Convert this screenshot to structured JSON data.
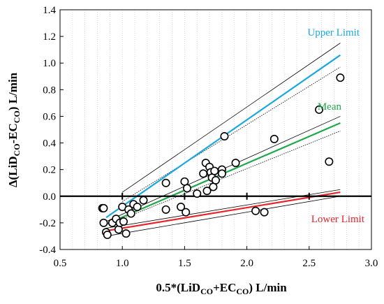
{
  "colors": {
    "upper": "#1aa7e0",
    "mean": "#1ea84a",
    "lower": "#e8242a",
    "regression": "#000000",
    "axis": "#000000",
    "grid": "#bdbdbd"
  },
  "labels": {
    "upper": "Upper Limit",
    "mean": "Mean",
    "lower": "Lower Limit"
  },
  "chart_data": {
    "type": "scatter",
    "title": "",
    "xlabel": {
      "prefix": "0.5*(LiD",
      "sub1": "CO",
      "mid": "+EC",
      "sub2": "CO",
      "suffix": ") L/min"
    },
    "ylabel": {
      "prefix": "Δ(LiD",
      "sub1": "CO",
      "mid": "-EC",
      "sub2": "CO",
      "suffix": ") L/min"
    },
    "xlim": [
      0.5,
      3.0
    ],
    "ylim": [
      -0.4,
      1.4
    ],
    "xticks": [
      0.5,
      1.0,
      1.5,
      2.0,
      2.5,
      3.0
    ],
    "xtick_labels": [
      "0.5",
      "1.0",
      "1.5",
      "2.0",
      "2.5",
      "3.0"
    ],
    "yticks": [
      -0.4,
      -0.2,
      0.0,
      0.2,
      0.4,
      0.6,
      0.8,
      1.0,
      1.2,
      1.4
    ],
    "ytick_labels": [
      "-0.4",
      "-0.2",
      "0.0",
      "0.2",
      "0.4",
      "0.6",
      "0.8",
      "1.0",
      "1.2",
      "1.4"
    ],
    "zero_line_ticks": [
      1.0,
      1.5,
      2.0,
      2.5
    ],
    "grid": "vertical minor dotted",
    "points": [
      {
        "x": 0.84,
        "y": -0.09
      },
      {
        "x": 0.85,
        "y": -0.09
      },
      {
        "x": 0.85,
        "y": -0.2
      },
      {
        "x": 0.87,
        "y": -0.27
      },
      {
        "x": 0.88,
        "y": -0.29
      },
      {
        "x": 0.92,
        "y": -0.2
      },
      {
        "x": 0.95,
        "y": -0.17
      },
      {
        "x": 0.97,
        "y": -0.25
      },
      {
        "x": 0.98,
        "y": -0.2
      },
      {
        "x": 1.0,
        "y": -0.08
      },
      {
        "x": 1.01,
        "y": -0.19
      },
      {
        "x": 1.03,
        "y": -0.28
      },
      {
        "x": 1.05,
        "y": -0.1
      },
      {
        "x": 1.07,
        "y": -0.13
      },
      {
        "x": 1.09,
        "y": -0.06
      },
      {
        "x": 1.12,
        "y": -0.08
      },
      {
        "x": 1.17,
        "y": -0.03
      },
      {
        "x": 1.35,
        "y": 0.1
      },
      {
        "x": 1.35,
        "y": -0.1
      },
      {
        "x": 1.47,
        "y": -0.08
      },
      {
        "x": 1.5,
        "y": 0.11
      },
      {
        "x": 1.51,
        "y": -0.12
      },
      {
        "x": 1.52,
        "y": 0.06
      },
      {
        "x": 1.6,
        "y": 0.02
      },
      {
        "x": 1.65,
        "y": 0.17
      },
      {
        "x": 1.67,
        "y": 0.25
      },
      {
        "x": 1.68,
        "y": 0.04
      },
      {
        "x": 1.7,
        "y": 0.22
      },
      {
        "x": 1.71,
        "y": 0.18
      },
      {
        "x": 1.72,
        "y": 0.14
      },
      {
        "x": 1.73,
        "y": 0.07
      },
      {
        "x": 1.74,
        "y": 0.19
      },
      {
        "x": 1.75,
        "y": 0.12
      },
      {
        "x": 1.8,
        "y": 0.2
      },
      {
        "x": 1.8,
        "y": 0.17
      },
      {
        "x": 1.82,
        "y": 0.45
      },
      {
        "x": 1.91,
        "y": 0.25
      },
      {
        "x": 2.07,
        "y": -0.11
      },
      {
        "x": 2.14,
        "y": -0.12
      },
      {
        "x": 2.22,
        "y": 0.43
      },
      {
        "x": 2.58,
        "y": 0.65
      },
      {
        "x": 2.66,
        "y": 0.26
      },
      {
        "x": 2.75,
        "y": 0.89
      }
    ],
    "lines": [
      {
        "name": "Upper Limit",
        "role": "upper",
        "x": [
          0.87,
          2.75
        ],
        "y": [
          -0.16,
          1.06
        ]
      },
      {
        "name": "Mean",
        "role": "mean",
        "x": [
          0.87,
          2.75
        ],
        "y": [
          -0.21,
          0.55
        ]
      },
      {
        "name": "Lower Limit",
        "role": "lower",
        "x": [
          0.87,
          2.75
        ],
        "y": [
          -0.26,
          0.03
        ]
      }
    ],
    "confidence_bands": [
      {
        "role": "upper",
        "style": "solid",
        "x": [
          1.0,
          2.75
        ],
        "y": [
          0.03,
          1.15
        ]
      },
      {
        "role": "upper",
        "style": "dotted",
        "x": [
          1.0,
          2.75
        ],
        "y": [
          -0.04,
          0.97
        ]
      },
      {
        "role": "mean",
        "style": "solid",
        "x": [
          0.87,
          2.75
        ],
        "y": [
          -0.19,
          0.6
        ]
      },
      {
        "role": "mean",
        "style": "dotted",
        "x": [
          1.0,
          2.75
        ],
        "y": [
          -0.17,
          0.49
        ]
      },
      {
        "role": "lower",
        "style": "solid",
        "x": [
          0.87,
          2.75
        ],
        "y": [
          -0.24,
          0.05
        ]
      },
      {
        "role": "lower",
        "style": "solid",
        "x": [
          0.87,
          2.75
        ],
        "y": [
          -0.3,
          0.0
        ]
      }
    ]
  }
}
